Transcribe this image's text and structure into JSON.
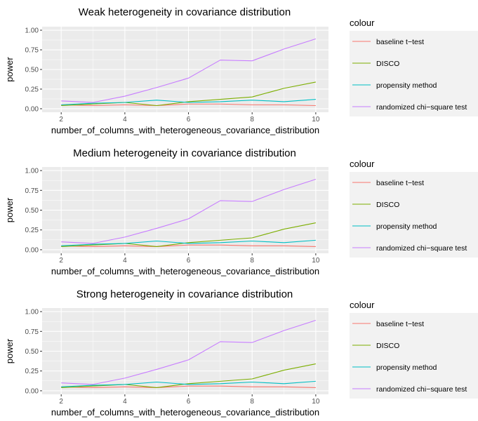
{
  "chart_data": [
    {
      "type": "line",
      "title": "Weak heterogeneity in covariance distribution",
      "xlabel": "number_of_columns_with_heterogeneous_covariance_distribution",
      "ylabel": "power",
      "x": [
        2,
        3,
        4,
        5,
        6,
        7,
        8,
        9,
        10
      ],
      "xticks": [
        "2",
        "4",
        "6",
        "8",
        "10"
      ],
      "yticks": [
        "0.00",
        "0.25",
        "0.50",
        "0.75",
        "1.00"
      ],
      "xlim": [
        1.4,
        10.4
      ],
      "ylim": [
        -0.045,
        1.045
      ],
      "legend_title": "colour",
      "legend_position": "right",
      "grid": true,
      "series": [
        {
          "name": "baseline t−test",
          "color": "#F8766D",
          "values": [
            0.05,
            0.04,
            0.05,
            0.04,
            0.06,
            0.06,
            0.05,
            0.05,
            0.04
          ]
        },
        {
          "name": "DISCO",
          "color": "#7CAE00",
          "values": [
            0.04,
            0.06,
            0.08,
            0.04,
            0.09,
            0.12,
            0.15,
            0.26,
            0.34
          ]
        },
        {
          "name": "propensity method",
          "color": "#00BFC4",
          "values": [
            0.05,
            0.07,
            0.08,
            0.11,
            0.08,
            0.09,
            0.11,
            0.09,
            0.12
          ]
        },
        {
          "name": "randomized chi−square test",
          "color": "#C77CFF",
          "values": [
            0.1,
            0.08,
            0.16,
            0.27,
            0.39,
            0.62,
            0.61,
            0.76,
            0.89
          ]
        }
      ]
    },
    {
      "type": "line",
      "title": "Medium heterogeneity in covariance distribution",
      "xlabel": "number_of_columns_with_heterogeneous_covariance_distribution",
      "ylabel": "power",
      "x": [
        2,
        3,
        4,
        5,
        6,
        7,
        8,
        9,
        10
      ],
      "xticks": [
        "2",
        "4",
        "6",
        "8",
        "10"
      ],
      "yticks": [
        "0.00",
        "0.25",
        "0.50",
        "0.75",
        "1.00"
      ],
      "xlim": [
        1.4,
        10.4
      ],
      "ylim": [
        -0.045,
        1.045
      ],
      "legend_title": "colour",
      "legend_position": "right",
      "grid": true,
      "series": [
        {
          "name": "baseline t−test",
          "color": "#F8766D",
          "values": [
            0.05,
            0.04,
            0.05,
            0.04,
            0.06,
            0.06,
            0.05,
            0.05,
            0.04
          ]
        },
        {
          "name": "DISCO",
          "color": "#7CAE00",
          "values": [
            0.04,
            0.06,
            0.08,
            0.04,
            0.09,
            0.12,
            0.15,
            0.26,
            0.34
          ]
        },
        {
          "name": "propensity method",
          "color": "#00BFC4",
          "values": [
            0.05,
            0.07,
            0.08,
            0.11,
            0.08,
            0.09,
            0.11,
            0.09,
            0.12
          ]
        },
        {
          "name": "randomized chi−square test",
          "color": "#C77CFF",
          "values": [
            0.1,
            0.08,
            0.16,
            0.27,
            0.39,
            0.62,
            0.61,
            0.76,
            0.89
          ]
        }
      ]
    },
    {
      "type": "line",
      "title": "Strong heterogeneity in covariance distribution",
      "xlabel": "number_of_columns_with_heterogeneous_covariance_distribution",
      "ylabel": "power",
      "x": [
        2,
        3,
        4,
        5,
        6,
        7,
        8,
        9,
        10
      ],
      "xticks": [
        "2",
        "4",
        "6",
        "8",
        "10"
      ],
      "yticks": [
        "0.00",
        "0.25",
        "0.50",
        "0.75",
        "1.00"
      ],
      "xlim": [
        1.4,
        10.4
      ],
      "ylim": [
        -0.045,
        1.045
      ],
      "legend_title": "colour",
      "legend_position": "right",
      "grid": true,
      "series": [
        {
          "name": "baseline t−test",
          "color": "#F8766D",
          "values": [
            0.05,
            0.04,
            0.05,
            0.04,
            0.06,
            0.06,
            0.05,
            0.05,
            0.04
          ]
        },
        {
          "name": "DISCO",
          "color": "#7CAE00",
          "values": [
            0.04,
            0.06,
            0.08,
            0.04,
            0.09,
            0.12,
            0.15,
            0.26,
            0.34
          ]
        },
        {
          "name": "propensity method",
          "color": "#00BFC4",
          "values": [
            0.05,
            0.07,
            0.08,
            0.11,
            0.08,
            0.09,
            0.11,
            0.09,
            0.12
          ]
        },
        {
          "name": "randomized chi−square test",
          "color": "#C77CFF",
          "values": [
            0.1,
            0.08,
            0.16,
            0.27,
            0.39,
            0.62,
            0.61,
            0.76,
            0.89
          ]
        }
      ]
    }
  ]
}
